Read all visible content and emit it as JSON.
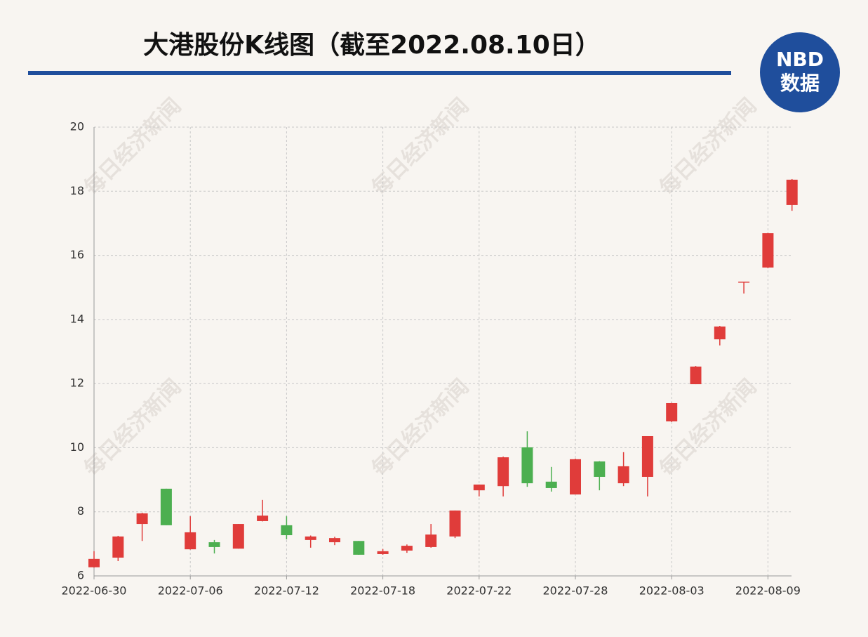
{
  "chart_data": {
    "type": "candlestick",
    "title": "大港股份K线图（截至2022.08.10日）",
    "watermark": "每日经济新闻",
    "categories": [
      "2022-06-30",
      null,
      null,
      null,
      "2022-07-06",
      null,
      null,
      null,
      "2022-07-12",
      null,
      null,
      null,
      "2022-07-18",
      null,
      null,
      null,
      "2022-07-22",
      null,
      null,
      null,
      "2022-07-28",
      null,
      null,
      null,
      "2022-08-03",
      null,
      null,
      null,
      "2022-08-09",
      null
    ],
    "open": [
      6.27,
      6.57,
      7.62,
      8.72,
      6.83,
      7.05,
      6.85,
      7.71,
      7.58,
      7.12,
      7.05,
      7.09,
      6.68,
      6.79,
      6.9,
      7.23,
      8.67,
      8.8,
      10.01,
      8.94,
      8.54,
      9.57,
      8.89,
      9.09,
      10.82,
      11.98,
      13.38,
      15.15,
      15.62,
      17.57
    ],
    "high": [
      6.77,
      7.25,
      7.97,
      8.72,
      7.86,
      7.12,
      7.62,
      8.37,
      7.86,
      7.26,
      7.22,
      7.09,
      6.84,
      6.98,
      7.62,
      8.04,
      8.85,
      9.72,
      10.51,
      9.4,
      9.66,
      9.58,
      9.86,
      10.36,
      11.4,
      12.55,
      13.8,
      15.18,
      16.7,
      18.38
    ],
    "low": [
      6.26,
      6.46,
      7.09,
      7.58,
      6.82,
      6.7,
      6.85,
      7.7,
      7.14,
      6.88,
      6.96,
      6.66,
      6.66,
      6.72,
      6.88,
      7.18,
      8.48,
      8.48,
      8.78,
      8.63,
      8.54,
      8.67,
      8.8,
      8.48,
      10.8,
      11.98,
      13.19,
      14.81,
      15.6,
      17.39
    ],
    "close": [
      6.53,
      7.23,
      7.95,
      7.58,
      7.36,
      6.9,
      7.62,
      7.88,
      7.27,
      7.23,
      7.18,
      6.66,
      6.77,
      6.94,
      7.29,
      8.04,
      8.85,
      9.7,
      8.89,
      8.74,
      9.64,
      9.09,
      9.42,
      10.36,
      11.39,
      12.53,
      13.78,
      15.18,
      16.69,
      18.36
    ],
    "up_color": "#e03c3a",
    "down_color": "#4caf50",
    "ylim": [
      6,
      20
    ],
    "yticks": [
      6,
      8,
      10,
      12,
      14,
      16,
      18,
      20
    ],
    "grid": true
  },
  "logo": {
    "top": "NBD",
    "bottom": "数据"
  }
}
